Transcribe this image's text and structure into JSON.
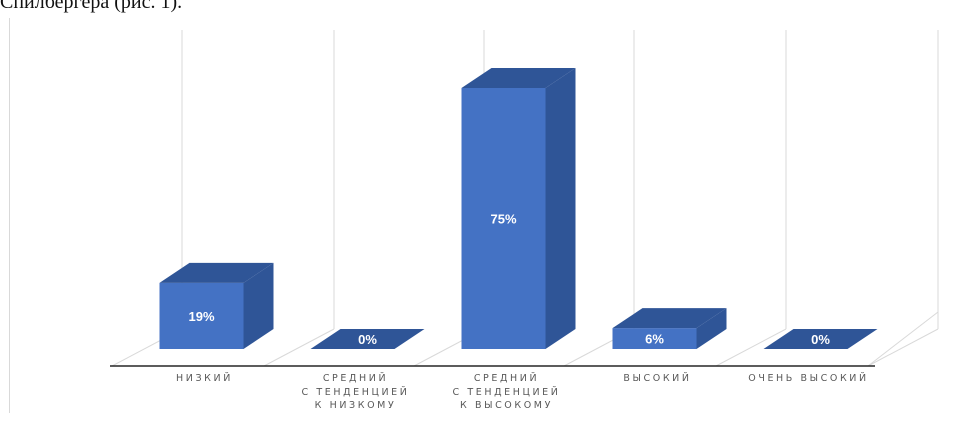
{
  "header_text": "Спилбергера (рис. 1).",
  "colors": {
    "bar_front": "#4472C4",
    "bar_side": "#2F5597",
    "bar_top": "#2F5597",
    "flat_bar": "#2F5597",
    "grid": "#d9d9d9",
    "axis": "#262626",
    "data_label": "#ffffff"
  },
  "chart_data": {
    "type": "bar",
    "style": "3d-column",
    "categories": [
      [
        "НИЗКИЙ"
      ],
      [
        "СРЕДНИЙ",
        "С ТЕНДЕНЦИЕЙ",
        "К НИЗКОМУ"
      ],
      [
        "СРЕДНИЙ",
        "С ТЕНДЕНЦИЕЙ",
        "К ВЫСОКОМУ"
      ],
      [
        "ВЫСОКИЙ"
      ],
      [
        "ОЧЕНЬ ВЫСОКИЙ"
      ]
    ],
    "values": [
      19,
      0,
      75,
      6,
      0
    ],
    "data_labels": [
      "19%",
      "0%",
      "75%",
      "6%",
      "0%"
    ],
    "ylim": [
      0,
      80
    ],
    "grid": true,
    "legend": "none"
  }
}
